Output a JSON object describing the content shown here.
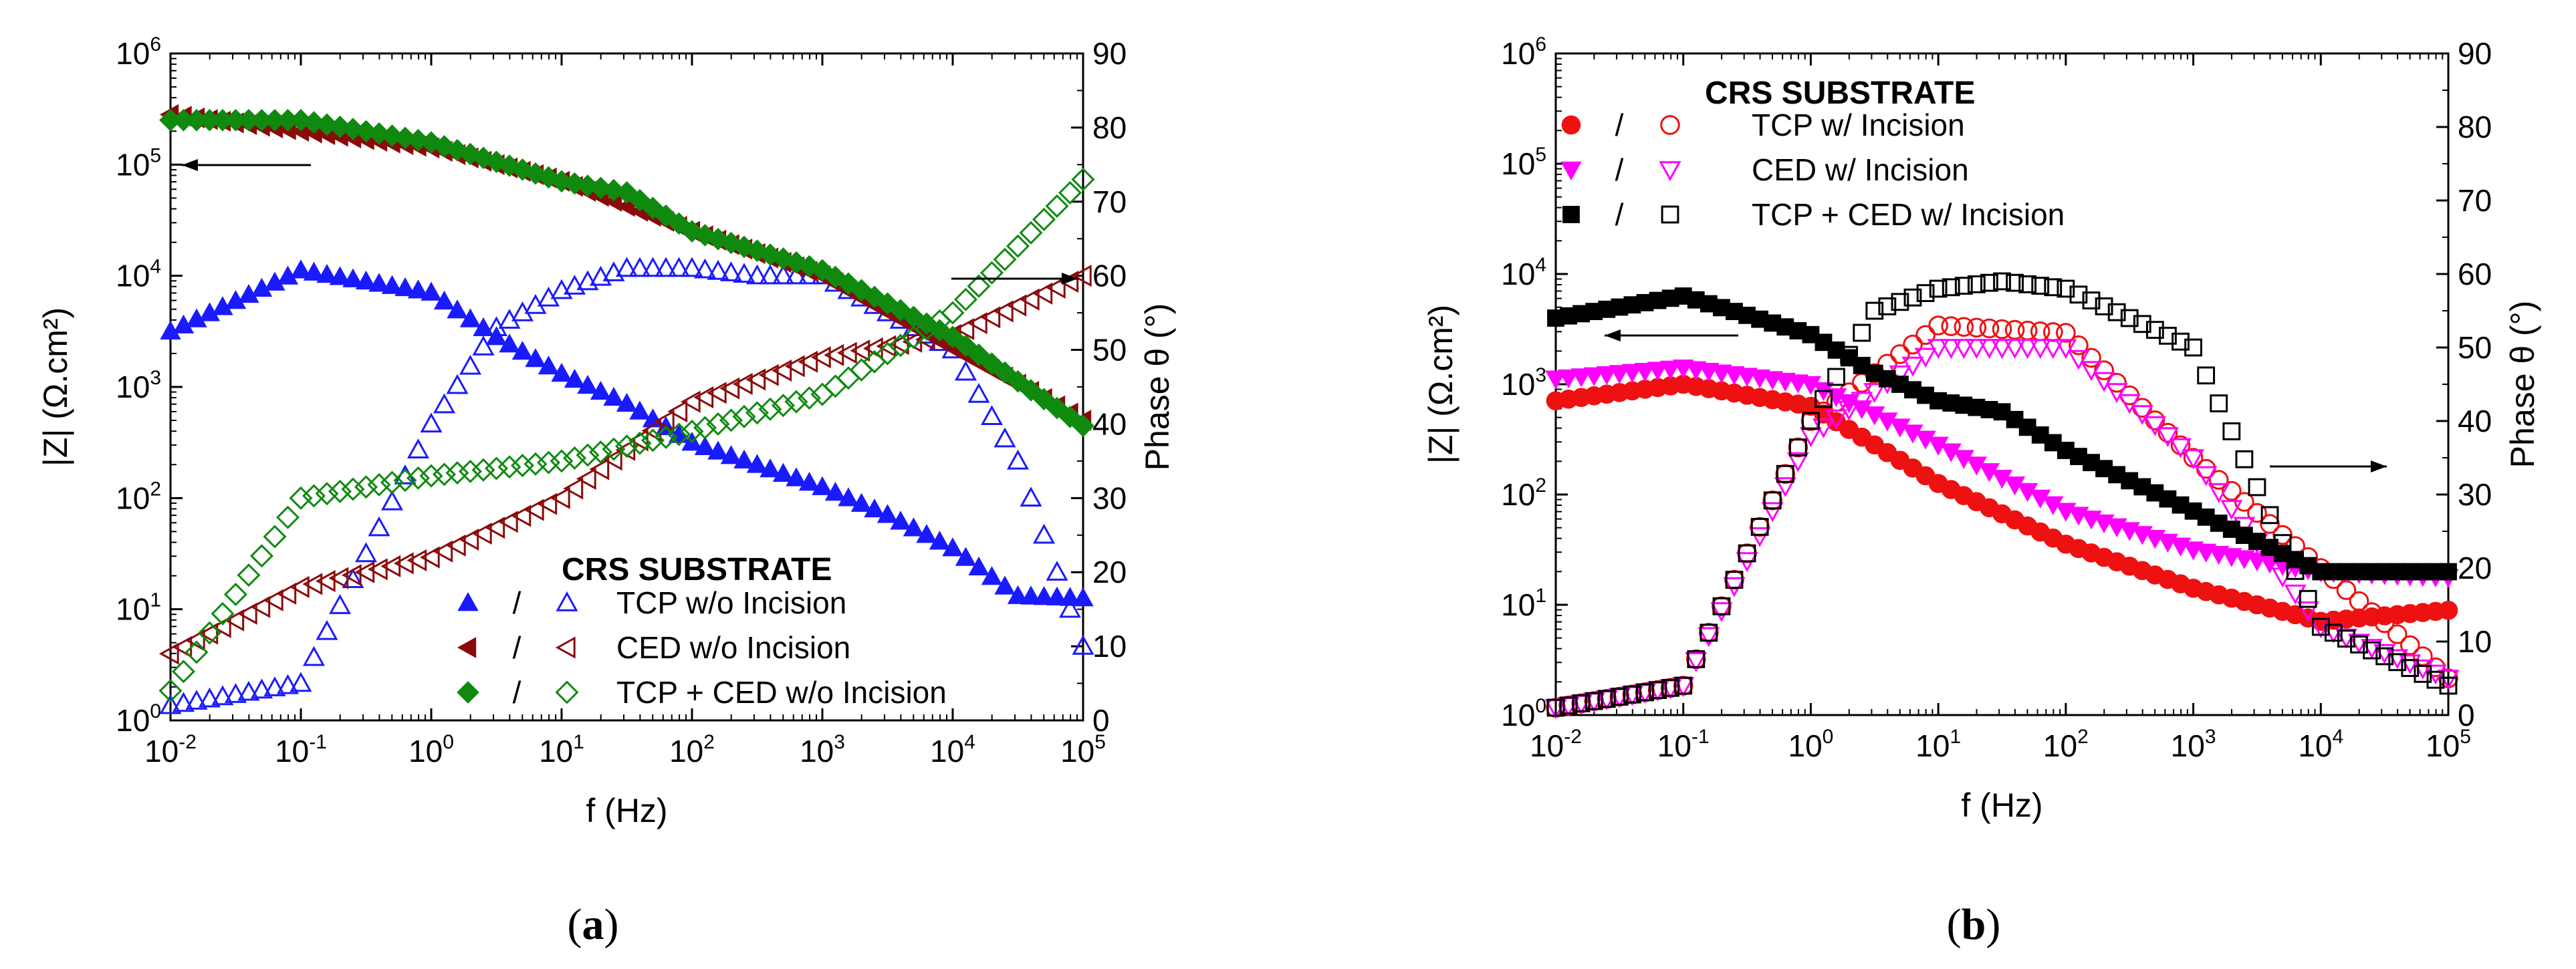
{
  "chart_data": [
    {
      "type": "scatter",
      "panel": "a",
      "caption": {
        "open": "(",
        "letter": "a",
        "close": ")"
      },
      "xlabel": "f (Hz)",
      "ylabel": "|Z| (Ω.cm²)",
      "y2label": "Phase θ (°)",
      "xscale": "log",
      "xlim_exp": [
        -2,
        5
      ],
      "yscale": "log",
      "ylim_exp": [
        0,
        6
      ],
      "y2lim": [
        0,
        90
      ],
      "y2ticks": [
        0,
        10,
        20,
        30,
        40,
        50,
        60,
        70,
        80,
        90
      ],
      "log_base": "10",
      "legend": {
        "title": "CRS SUBSTRATE",
        "placement": "bottom-right",
        "separator": "/",
        "entries": [
          "TCP w/o Incision",
          "CED w/o Incision",
          "TCP + CED w/o Incision"
        ]
      },
      "series": [
        {
          "name": "TCP w/o Incision",
          "color": "#1a1aff",
          "marker": "triangle-up",
          "logf": [
            -2,
            -1,
            0,
            0.5,
            1,
            1.5,
            2,
            2.5,
            3,
            3.5,
            4,
            4.5,
            5
          ],
          "log_modZ": [
            3.5,
            4.05,
            3.85,
            3.45,
            3.12,
            2.85,
            2.5,
            2.3,
            2.1,
            1.85,
            1.55,
            1.12,
            1.1
          ],
          "phase": [
            2,
            5,
            40,
            53,
            58,
            61,
            61,
            60,
            60,
            55,
            50,
            35,
            10
          ]
        },
        {
          "name": "CED w/o Incision",
          "color": "#8b0a0a",
          "marker": "triangle-left",
          "logf": [
            -2,
            -1,
            0,
            1,
            2,
            3,
            4,
            5
          ],
          "log_modZ": [
            5.45,
            5.3,
            5.15,
            4.85,
            4.4,
            4.0,
            3.35,
            2.7
          ],
          "phase": [
            9,
            18,
            22,
            30,
            43,
            49,
            52,
            60
          ]
        },
        {
          "name": "TCP + CED w/o Incision",
          "color": "#0f8a0f",
          "marker": "diamond",
          "logf": [
            -2,
            -1,
            0,
            1,
            1.5,
            2,
            3,
            4,
            5
          ],
          "log_modZ": [
            5.4,
            5.4,
            5.2,
            4.85,
            4.75,
            4.4,
            4.05,
            3.45,
            2.65
          ],
          "phase": [
            4,
            30,
            33,
            35,
            37,
            39,
            44,
            55,
            73
          ]
        }
      ],
      "annotations": [
        "arrow-left at ≈1e5 pointing to |Z| axis",
        "arrow-right at ≈1e4 pointing to Phase axis"
      ]
    },
    {
      "type": "scatter",
      "panel": "b",
      "caption": {
        "open": "(",
        "letter": "b",
        "close": ")"
      },
      "xlabel": "f (Hz)",
      "ylabel": "|Z| (Ω.cm²)",
      "y2label": "Phase θ (°)",
      "xscale": "log",
      "xlim_exp": [
        -2,
        5
      ],
      "yscale": "log",
      "ylim_exp": [
        0,
        6
      ],
      "y2lim": [
        0,
        90
      ],
      "y2ticks": [
        0,
        10,
        20,
        30,
        40,
        50,
        60,
        70,
        80,
        90
      ],
      "log_base": "10",
      "legend": {
        "title": "CRS SUBSTRATE",
        "placement": "top-left",
        "separator": "/",
        "entries": [
          "TCP w/ Incision",
          "CED w/ Incision",
          "TCP + CED w/ Incision"
        ]
      },
      "series": [
        {
          "name": "TCP w/ Incision",
          "color": "#ee1111",
          "marker": "circle",
          "logf": [
            -2,
            -1,
            0,
            1,
            2,
            3,
            4,
            5
          ],
          "log_modZ": [
            2.85,
            3.0,
            2.8,
            2.1,
            1.55,
            1.15,
            0.85,
            0.95
          ],
          "phase": [
            1,
            4,
            40,
            53,
            52,
            35,
            20,
            5
          ]
        },
        {
          "name": "CED w/ Incision",
          "color": "#ff00ff",
          "marker": "triangle-down",
          "logf": [
            -2,
            -1,
            0,
            1,
            2,
            3,
            4,
            5
          ],
          "log_modZ": [
            3.05,
            3.15,
            3.0,
            2.45,
            1.85,
            1.5,
            1.3,
            1.25
          ],
          "phase": [
            1,
            4,
            38,
            50,
            50,
            35,
            12,
            5
          ]
        },
        {
          "name": "TCP + CED w/ Incision",
          "color": "#000000",
          "marker": "square",
          "logf": [
            -2,
            -1,
            0,
            0.5,
            1,
            1.5,
            2,
            3,
            4,
            5
          ],
          "log_modZ": [
            3.6,
            3.8,
            3.45,
            3.1,
            2.85,
            2.75,
            2.4,
            1.85,
            1.3,
            1.3
          ],
          "phase": [
            1,
            4,
            40,
            55,
            58,
            59,
            58,
            50,
            12,
            4
          ]
        }
      ],
      "annotations": [
        "arrow-left at ≈5e3 pointing to |Z| axis",
        "arrow-right at ≈30 pointing to Phase axis"
      ]
    }
  ]
}
